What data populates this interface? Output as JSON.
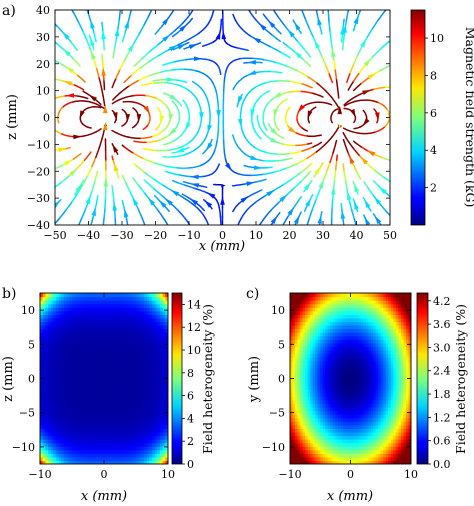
{
  "panels": {
    "a": "a)",
    "b": "b)",
    "c": "c)"
  },
  "chart_data": [
    {
      "id": "a",
      "type": "streamplot",
      "title": "",
      "xlabel": "x (mm)",
      "ylabel": "z (mm)",
      "xlim": [
        -50,
        50
      ],
      "ylim": [
        -40,
        40
      ],
      "xticks": [
        -50,
        -40,
        -30,
        -20,
        -10,
        0,
        10,
        20,
        30,
        40,
        50
      ],
      "yticks": [
        -40,
        -30,
        -20,
        -10,
        0,
        10,
        20,
        30,
        40
      ],
      "colorbar": {
        "label": "Magnetic field strength (kG)",
        "range": [
          0,
          11.5
        ],
        "ticks": [
          2,
          4,
          6,
          8,
          10
        ],
        "colormap": "jet"
      },
      "field": {
        "description_values": "dipole sources",
        "sources": [
          {
            "x": -35,
            "z": 0,
            "mz": 1
          },
          {
            "x": 35,
            "z": 0,
            "mz": 1
          }
        ],
        "peak_kG": 11
      }
    },
    {
      "id": "b",
      "type": "heatmap",
      "title": "",
      "xlabel": "x (mm)",
      "ylabel": "z (mm)",
      "xlim": [
        -10,
        10
      ],
      "ylim": [
        -12.5,
        12.5
      ],
      "xticks": [
        -10,
        0,
        10
      ],
      "yticks": [
        -10,
        -5,
        0,
        5,
        10
      ],
      "colorbar": {
        "label": "Field heterogeneity (%)",
        "range": [
          0,
          15
        ],
        "ticks": [
          0,
          2,
          4,
          6,
          8,
          10,
          12,
          14
        ],
        "colormap": "jet"
      },
      "surface": {
        "model": "saddle",
        "center_value": 0.4,
        "corner_value": 14.5,
        "edge_mid_top_value": 3.5,
        "edge_mid_side_value": 1.2
      }
    },
    {
      "id": "c",
      "type": "heatmap",
      "title": "",
      "xlabel": "x (mm)",
      "ylabel": "y (mm)",
      "xlim": [
        -10,
        10
      ],
      "ylim": [
        -12.5,
        12.5
      ],
      "xticks": [
        -10,
        0,
        10
      ],
      "yticks": [
        -10,
        -5,
        0,
        5,
        10
      ],
      "colorbar": {
        "label": "Field heterogeneity (%)",
        "range": [
          0,
          4.4
        ],
        "ticks": [
          0.0,
          0.6,
          1.2,
          1.8,
          2.4,
          3.0,
          3.6,
          4.2
        ],
        "tick_labels": [
          "0.0",
          "0.6",
          "1.2",
          "1.8",
          "2.4",
          "3.0",
          "3.6",
          "4.2"
        ],
        "colormap": "jet"
      },
      "surface": {
        "model": "elliptic-bowl",
        "center_value": 0,
        "edge_x_value": 3.0,
        "edge_y_value": 2.9,
        "max_value": 4.4
      }
    }
  ]
}
